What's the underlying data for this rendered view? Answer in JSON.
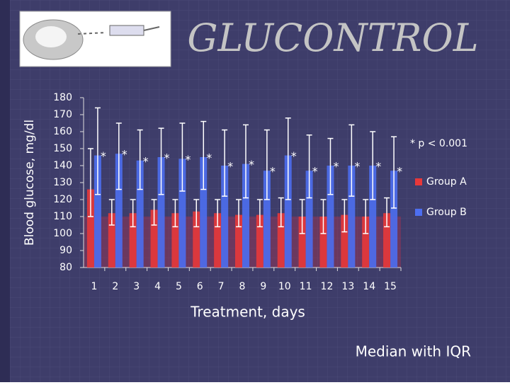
{
  "chart_data": {
    "type": "bar",
    "title": "GLUCONTROL",
    "ylabel": "Blood glucose, mg/dl",
    "xlabel": "Treatment, days",
    "note": "* p < 0.001",
    "footer": "Median with IQR",
    "categories": [
      "1",
      "2",
      "3",
      "4",
      "5",
      "6",
      "7",
      "8",
      "9",
      "10",
      "11",
      "12",
      "13",
      "14",
      "15"
    ],
    "series": [
      {
        "name": "Group A",
        "color": "#e8383a",
        "values": [
          126,
          112,
          112,
          114,
          112,
          113,
          112,
          111,
          111,
          112,
          110,
          110,
          111,
          110,
          112
        ],
        "q1": [
          110,
          105,
          104,
          105,
          104,
          104,
          104,
          104,
          104,
          104,
          100,
          100,
          101,
          100,
          104
        ],
        "q3": [
          150,
          120,
          120,
          120,
          120,
          120,
          120,
          120,
          120,
          121,
          120,
          120,
          120,
          120,
          121
        ]
      },
      {
        "name": "Group B",
        "color": "#4d6ef0",
        "values": [
          146,
          147,
          143,
          145,
          144,
          145,
          140,
          141,
          137,
          146,
          137,
          140,
          140,
          140,
          137
        ],
        "q1": [
          123,
          126,
          126,
          123,
          125,
          126,
          122,
          121,
          120,
          120,
          121,
          123,
          122,
          120,
          115
        ],
        "q3": [
          174,
          165,
          161,
          162,
          165,
          166,
          161,
          164,
          161,
          168,
          158,
          156,
          164,
          160,
          157
        ]
      }
    ],
    "markers": [
      "*",
      "*",
      "*",
      "*",
      "*",
      "*",
      "*",
      "*",
      "*",
      "*",
      "*",
      "*",
      "*",
      "*",
      "*"
    ],
    "reference_line": 110,
    "ylim": [
      80,
      180
    ],
    "yticks": [
      80,
      90,
      100,
      110,
      120,
      130,
      140,
      150,
      160,
      170,
      180
    ]
  }
}
